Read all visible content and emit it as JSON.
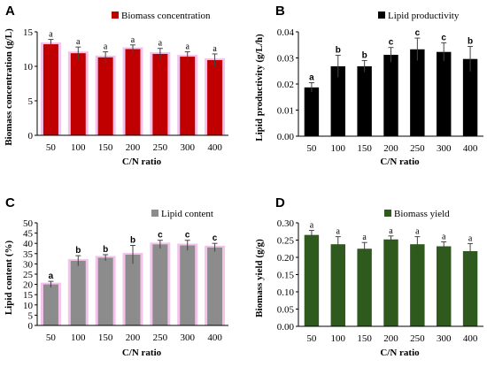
{
  "chart_data": [
    {
      "panel": "A",
      "type": "bar",
      "categories": [
        "50",
        "100",
        "150",
        "200",
        "250",
        "300",
        "400"
      ],
      "values": [
        13.2,
        11.9,
        11.3,
        12.5,
        11.8,
        11.4,
        10.9
      ],
      "errors": [
        0.7,
        0.9,
        0.8,
        0.6,
        0.8,
        0.7,
        0.9
      ],
      "labels": [
        "a",
        "a",
        "a",
        "a",
        "a",
        "a",
        "a"
      ],
      "series": [
        {
          "name": "Biomass concentration",
          "color": "#c00000"
        }
      ],
      "xlabel": "C/N ratio",
      "ylabel": "Biomass concentration (g/L)",
      "ylim": [
        0,
        15
      ],
      "yticks": [
        "0",
        "5",
        "10",
        "15"
      ],
      "legend": "top-right",
      "grid": false
    },
    {
      "panel": "B",
      "type": "bar",
      "categories": [
        "50",
        "100",
        "150",
        "200",
        "250",
        "300",
        "400"
      ],
      "values": [
        0.0187,
        0.0268,
        0.0268,
        0.0312,
        0.0333,
        0.0323,
        0.0296
      ],
      "errors": [
        0.0018,
        0.0042,
        0.0022,
        0.0028,
        0.0043,
        0.0035,
        0.0048
      ],
      "labels": [
        "a",
        "b",
        "b",
        "c",
        "c",
        "c",
        "b"
      ],
      "series": [
        {
          "name": "Lipid productivity",
          "color": "#000000"
        }
      ],
      "xlabel": "C/N ratio",
      "ylabel": "Lipid productivity (g/L/h)",
      "ylim": [
        0,
        0.04
      ],
      "yticks": [
        "0.00",
        "0.01",
        "0.02",
        "0.03",
        "0.04"
      ],
      "legend": "top-right",
      "grid": false
    },
    {
      "panel": "C",
      "type": "bar",
      "categories": [
        "50",
        "100",
        "150",
        "200",
        "250",
        "300",
        "400"
      ],
      "values": [
        20,
        31.5,
        33,
        34.5,
        39.5,
        39,
        38
      ],
      "errors": [
        1.5,
        2.5,
        1.5,
        4.5,
        2,
        2.5,
        2
      ],
      "labels": [
        "a",
        "b",
        "b",
        "b",
        "c",
        "c",
        "c"
      ],
      "series": [
        {
          "name": "Lipid content",
          "color": "#8c8c8c"
        }
      ],
      "xlabel": "C/N ratio",
      "ylabel": "Lipid content (%)",
      "ylim": [
        0,
        50
      ],
      "yticks": [
        "0",
        "5",
        "10",
        "15",
        "20",
        "25",
        "30",
        "35",
        "40",
        "45",
        "50"
      ],
      "legend": "top-right",
      "grid": false
    },
    {
      "panel": "D",
      "type": "bar",
      "categories": [
        "50",
        "100",
        "150",
        "200",
        "250",
        "300",
        "400"
      ],
      "values": [
        0.265,
        0.238,
        0.225,
        0.252,
        0.238,
        0.232,
        0.218
      ],
      "errors": [
        0.013,
        0.022,
        0.018,
        0.01,
        0.022,
        0.013,
        0.022
      ],
      "labels": [
        "a",
        "a",
        "a",
        "a",
        "a",
        "a",
        "a"
      ],
      "series": [
        {
          "name": "Biomass yield",
          "color": "#2e5a1e"
        }
      ],
      "xlabel": "C/N ratio",
      "ylabel": "Biomass yield (g/g)",
      "ylim": [
        0,
        0.3
      ],
      "yticks": [
        "0.00",
        "0.05",
        "0.10",
        "0.15",
        "0.20",
        "0.25",
        "0.30"
      ],
      "legend": "top-right",
      "grid": false
    }
  ]
}
